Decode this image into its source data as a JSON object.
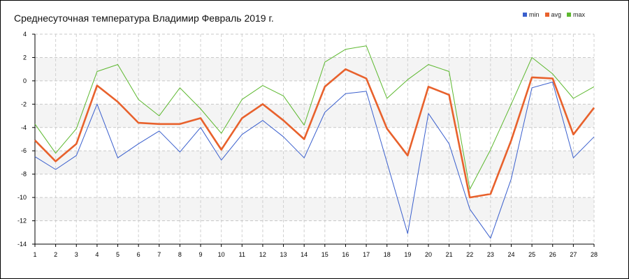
{
  "chart_data": {
    "type": "line",
    "title": "Среднесуточная температура Владимир  Февраль 2019 г.",
    "xlabel": "",
    "ylabel": "",
    "x": [
      1,
      2,
      3,
      4,
      5,
      6,
      7,
      8,
      9,
      10,
      11,
      12,
      13,
      14,
      15,
      16,
      17,
      18,
      19,
      20,
      21,
      22,
      23,
      24,
      25,
      26,
      27,
      28
    ],
    "xlim": [
      1,
      28
    ],
    "ylim": [
      -14,
      4
    ],
    "y_ticks": [
      4,
      2,
      0,
      -2,
      -4,
      -6,
      -8,
      -10,
      -12,
      -14
    ],
    "grid": true,
    "legend_position": "top-right",
    "series": [
      {
        "name": "min",
        "color": "#3a5fcd",
        "values": [
          -6.5,
          -7.6,
          -6.4,
          -2.0,
          -6.6,
          -5.4,
          -4.3,
          -6.1,
          -4.0,
          -6.8,
          -4.6,
          -3.4,
          -4.8,
          -6.6,
          -2.7,
          -1.1,
          -0.9,
          -7.0,
          -13.1,
          -2.8,
          -5.4,
          -11.0,
          -13.5,
          -8.4,
          -0.6,
          -0.1,
          -6.6,
          -4.8
        ]
      },
      {
        "name": "avg",
        "color": "#e8612c",
        "values": [
          -5.1,
          -6.9,
          -5.4,
          -0.4,
          -1.8,
          -3.6,
          -3.7,
          -3.7,
          -3.2,
          -5.9,
          -3.2,
          -2.0,
          -3.4,
          -5.0,
          -0.5,
          1.0,
          0.2,
          -4.1,
          -6.4,
          -0.5,
          -1.2,
          -10.0,
          -9.7,
          -5.1,
          0.3,
          0.2,
          -4.6,
          -2.3
        ]
      },
      {
        "name": "max",
        "color": "#5cb82e",
        "values": [
          -3.7,
          -6.2,
          -4.1,
          0.8,
          1.4,
          -1.6,
          -3.0,
          -0.6,
          -2.4,
          -4.5,
          -1.6,
          -0.4,
          -1.3,
          -3.8,
          1.6,
          2.7,
          3.0,
          -1.5,
          0.1,
          1.4,
          0.8,
          -9.3,
          -5.9,
          -2.0,
          2.0,
          0.6,
          -1.5,
          -0.5
        ]
      }
    ]
  }
}
